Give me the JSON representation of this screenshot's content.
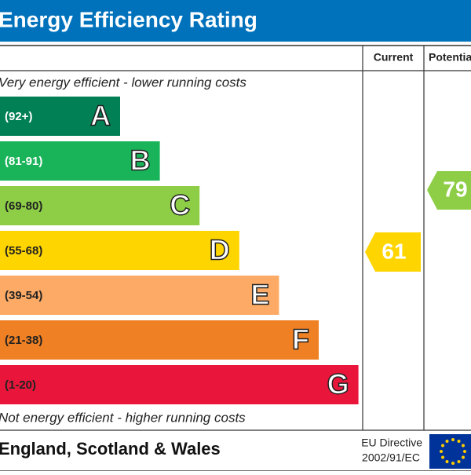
{
  "header": {
    "title": "Energy Efficiency Rating"
  },
  "columns": {
    "current": "Current",
    "potential": "Potential"
  },
  "top_note": "Very energy efficient - lower running costs",
  "bottom_note": "Not energy efficient - higher running costs",
  "bands": [
    {
      "range": "(92+)",
      "letter": "A",
      "color": "#008054"
    },
    {
      "range": "(81-91)",
      "letter": "B",
      "color": "#19b459"
    },
    {
      "range": "(69-80)",
      "letter": "C",
      "color": "#8dce46"
    },
    {
      "range": "(55-68)",
      "letter": "D",
      "color": "#ffd500"
    },
    {
      "range": "(39-54)",
      "letter": "E",
      "color": "#fcaa65"
    },
    {
      "range": "(21-38)",
      "letter": "F",
      "color": "#ef8023"
    },
    {
      "range": "(1-20)",
      "letter": "G",
      "color": "#e9153b"
    }
  ],
  "current": {
    "value": 61,
    "color": "#ffd500"
  },
  "potential": {
    "value": 79,
    "color": "#8dce46"
  },
  "footer": {
    "region": "England, Scotland & Wales",
    "directive_line1": "EU Directive",
    "directive_line2": "2002/91/EC"
  }
}
